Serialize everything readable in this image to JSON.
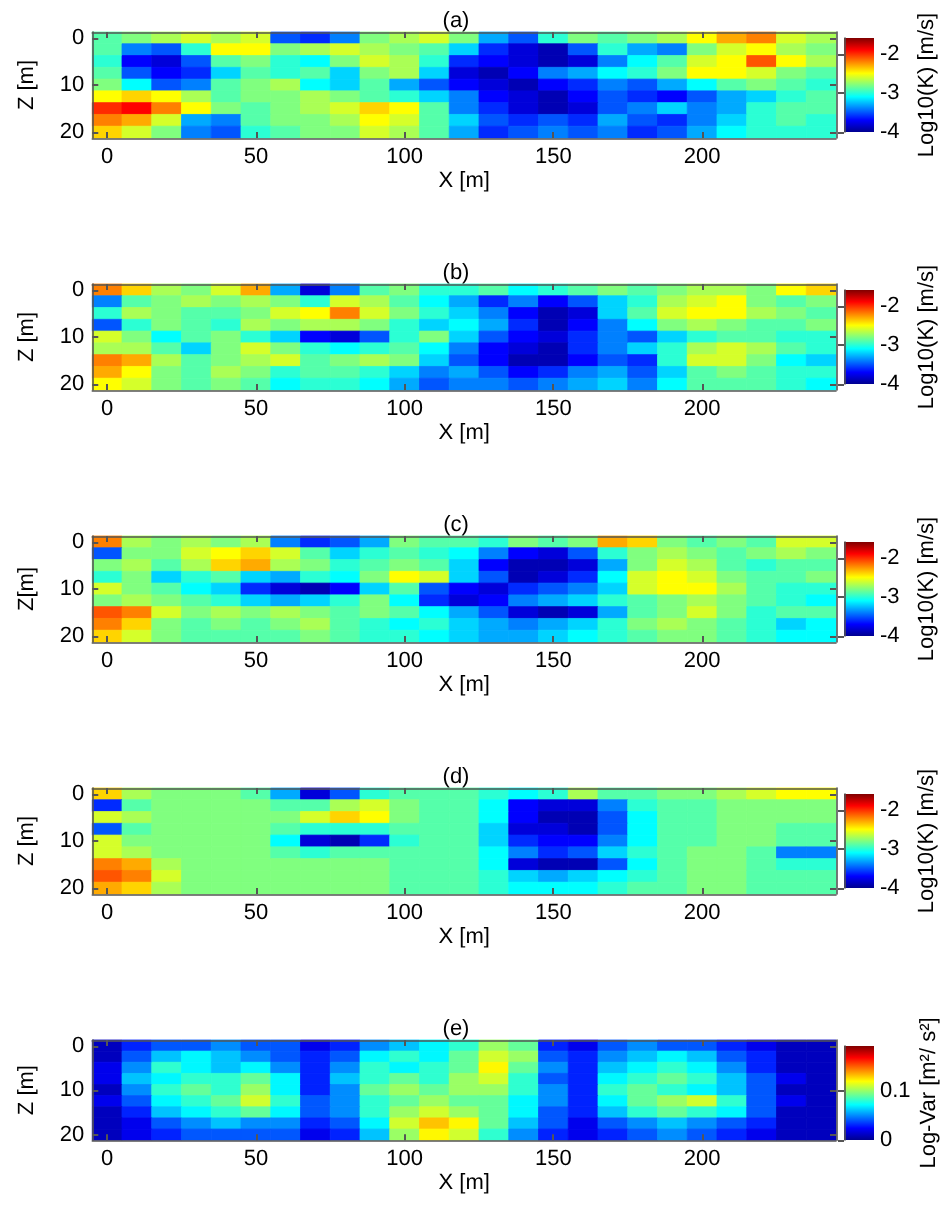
{
  "chart_data": [
    {
      "type": "heatmap",
      "title": "(a)",
      "xlabel": "X [m]",
      "ylabel": "Z [m]",
      "clabel": "Log10(K) [m/s]",
      "categories": [
        "0",
        null,
        null,
        null,
        null,
        "50",
        null,
        null,
        null,
        null,
        "100",
        null,
        null,
        null,
        null,
        "150",
        null,
        null,
        null,
        null,
        "200",
        null,
        null,
        null,
        null
      ],
      "y_categories": [
        "0",
        null,
        null,
        null,
        "10",
        null,
        null,
        null,
        "20"
      ],
      "clim": [
        -4,
        -1.6
      ],
      "cticks": [
        -4,
        -3,
        -2
      ],
      "cells": [
        [
          -2.9,
          -2.8,
          -2.7,
          -2.6,
          -2.7,
          -2.6,
          -3.5,
          -3.6,
          -3.4,
          -2.8,
          -2.7,
          -2.6,
          -2.8,
          -3.3,
          -3.5,
          -3.0,
          -2.8,
          -2.9,
          -2.8,
          -2.7,
          -2.5,
          -2.3,
          -2.2,
          -2.6,
          -2.7
        ],
        [
          -2.9,
          -3.4,
          -3.5,
          -3.0,
          -2.5,
          -2.5,
          -2.8,
          -2.7,
          -2.6,
          -2.7,
          -2.8,
          -2.9,
          -3.2,
          -3.6,
          -3.8,
          -3.9,
          -3.5,
          -3.0,
          -3.3,
          -3.4,
          -2.8,
          -2.6,
          -2.5,
          -2.7,
          -2.8
        ],
        [
          -3.0,
          -3.7,
          -3.8,
          -3.5,
          -2.9,
          -2.8,
          -3.0,
          -3.1,
          -2.8,
          -2.6,
          -2.7,
          -3.0,
          -3.6,
          -3.7,
          -3.8,
          -3.9,
          -3.8,
          -3.4,
          -3.1,
          -2.9,
          -2.6,
          -2.5,
          -2.1,
          -2.5,
          -2.7
        ],
        [
          -2.9,
          -3.5,
          -3.7,
          -3.6,
          -3.2,
          -2.9,
          -3.0,
          -2.9,
          -3.2,
          -2.8,
          -2.7,
          -3.2,
          -3.8,
          -3.9,
          -3.7,
          -3.4,
          -3.3,
          -3.1,
          -3.0,
          -2.8,
          -2.5,
          -2.5,
          -2.6,
          -2.8,
          -2.9
        ],
        [
          -2.8,
          -3.1,
          -3.5,
          -3.4,
          -2.9,
          -2.8,
          -2.7,
          -3.1,
          -3.2,
          -2.9,
          -3.3,
          -3.5,
          -3.7,
          -3.8,
          -3.9,
          -3.7,
          -3.6,
          -3.4,
          -3.5,
          -3.3,
          -3.1,
          -2.9,
          -2.8,
          -2.9,
          -3.0
        ],
        [
          -2.5,
          -2.4,
          -2.5,
          -2.7,
          -2.9,
          -2.8,
          -2.8,
          -2.7,
          -2.8,
          -2.9,
          -3.0,
          -3.2,
          -3.4,
          -3.7,
          -3.8,
          -3.9,
          -3.7,
          -3.5,
          -3.6,
          -3.7,
          -3.5,
          -3.3,
          -3.2,
          -3.0,
          -2.9
        ],
        [
          -2.0,
          -1.9,
          -2.2,
          -2.5,
          -2.8,
          -2.9,
          -2.8,
          -2.7,
          -2.6,
          -2.4,
          -2.5,
          -2.9,
          -3.4,
          -3.6,
          -3.8,
          -3.9,
          -3.8,
          -3.5,
          -3.4,
          -3.2,
          -3.4,
          -3.3,
          -3.0,
          -2.9,
          -2.9
        ],
        [
          -2.2,
          -2.3,
          -2.6,
          -3.3,
          -3.4,
          -2.9,
          -2.8,
          -2.8,
          -2.7,
          -2.5,
          -2.6,
          -2.9,
          -3.2,
          -3.5,
          -3.6,
          -3.5,
          -3.6,
          -3.3,
          -3.5,
          -3.6,
          -3.4,
          -3.2,
          -3.0,
          -2.9,
          -3.0
        ],
        [
          -2.4,
          -2.6,
          -2.8,
          -3.4,
          -3.5,
          -3.0,
          -2.9,
          -2.8,
          -2.8,
          -2.6,
          -2.7,
          -2.9,
          -3.3,
          -3.6,
          -3.5,
          -3.4,
          -3.5,
          -3.4,
          -3.6,
          -3.5,
          -3.3,
          -3.1,
          -3.0,
          -3.0,
          -3.0
        ]
      ]
    },
    {
      "type": "heatmap",
      "title": "(b)",
      "xlabel": "X [m]",
      "ylabel": "Z [m]",
      "clabel": "Log10(K) [m/s]",
      "categories": [
        "0",
        null,
        null,
        null,
        null,
        "50",
        null,
        null,
        null,
        null,
        "100",
        null,
        null,
        null,
        null,
        "150",
        null,
        null,
        null,
        null,
        "200",
        null,
        null,
        null,
        null
      ],
      "y_categories": [
        "0",
        null,
        null,
        null,
        "10",
        null,
        null,
        null,
        "20"
      ],
      "clim": [
        -4,
        -1.6
      ],
      "cticks": [
        -4,
        -3,
        -2
      ],
      "cells": [
        [
          -2.2,
          -2.4,
          -2.7,
          -2.8,
          -2.6,
          -2.3,
          -3.3,
          -3.8,
          -3.4,
          -2.9,
          -2.8,
          -3.0,
          -3.0,
          -2.9,
          -3.1,
          -3.0,
          -2.9,
          -2.8,
          -2.9,
          -2.8,
          -2.7,
          -2.7,
          -2.8,
          -2.5,
          -2.4
        ],
        [
          -3.4,
          -2.9,
          -2.8,
          -2.7,
          -2.8,
          -2.7,
          -2.8,
          -3.0,
          -2.6,
          -2.7,
          -2.9,
          -3.1,
          -3.3,
          -3.6,
          -3.4,
          -3.7,
          -3.5,
          -3.2,
          -3.0,
          -2.7,
          -2.6,
          -2.5,
          -2.8,
          -2.9,
          -2.8
        ],
        [
          -3.0,
          -2.7,
          -2.8,
          -2.9,
          -2.9,
          -2.8,
          -2.6,
          -2.5,
          -2.2,
          -2.6,
          -2.8,
          -3.0,
          -3.2,
          -3.4,
          -3.7,
          -3.9,
          -3.8,
          -3.2,
          -2.9,
          -2.6,
          -2.5,
          -2.5,
          -2.7,
          -2.8,
          -2.9
        ],
        [
          -3.5,
          -3.0,
          -2.8,
          -2.9,
          -3.0,
          -2.7,
          -2.8,
          -2.7,
          -2.7,
          -2.8,
          -3.0,
          -3.2,
          -3.1,
          -3.3,
          -3.6,
          -3.9,
          -3.7,
          -3.4,
          -3.1,
          -2.8,
          -2.7,
          -2.8,
          -2.9,
          -2.9,
          -2.8
        ],
        [
          -2.6,
          -2.8,
          -3.1,
          -2.9,
          -2.8,
          -3.0,
          -3.2,
          -3.7,
          -3.8,
          -3.5,
          -3.0,
          -2.8,
          -3.2,
          -3.5,
          -3.7,
          -3.8,
          -3.6,
          -3.4,
          -3.5,
          -3.2,
          -3.0,
          -2.9,
          -2.9,
          -3.0,
          -3.0
        ],
        [
          -2.7,
          -2.7,
          -2.9,
          -3.2,
          -2.8,
          -2.6,
          -2.8,
          -3.0,
          -3.1,
          -3.0,
          -2.9,
          -3.1,
          -3.4,
          -3.7,
          -3.8,
          -3.9,
          -3.6,
          -3.4,
          -3.2,
          -3.0,
          -2.7,
          -2.6,
          -2.7,
          -2.9,
          -3.0
        ],
        [
          -2.2,
          -2.3,
          -2.7,
          -2.9,
          -2.8,
          -2.7,
          -2.6,
          -2.9,
          -2.8,
          -2.7,
          -2.8,
          -3.2,
          -3.5,
          -3.7,
          -3.9,
          -3.9,
          -3.7,
          -3.5,
          -3.6,
          -3.0,
          -2.6,
          -2.6,
          -2.8,
          -3.1,
          -3.2
        ],
        [
          -2.3,
          -2.5,
          -2.8,
          -2.9,
          -2.7,
          -2.8,
          -3.0,
          -2.9,
          -2.9,
          -3.0,
          -3.2,
          -3.4,
          -3.3,
          -3.5,
          -3.7,
          -3.6,
          -3.4,
          -3.3,
          -3.5,
          -3.2,
          -2.9,
          -2.8,
          -2.9,
          -3.0,
          -3.0
        ],
        [
          -2.5,
          -2.6,
          -2.8,
          -2.9,
          -2.8,
          -2.9,
          -3.1,
          -3.0,
          -3.0,
          -3.1,
          -3.3,
          -3.5,
          -3.4,
          -3.4,
          -3.5,
          -3.4,
          -3.3,
          -3.2,
          -3.4,
          -3.1,
          -2.9,
          -2.9,
          -2.9,
          -3.0,
          -3.1
        ]
      ]
    },
    {
      "type": "heatmap",
      "title": "(c)",
      "xlabel": "X [m]",
      "ylabel": "Z[m]",
      "clabel": "Log10(K) [m/s]",
      "categories": [
        "0",
        null,
        null,
        null,
        null,
        "50",
        null,
        null,
        null,
        null,
        "100",
        null,
        null,
        null,
        null,
        "150",
        null,
        null,
        null,
        null,
        "200",
        null,
        null,
        null,
        null
      ],
      "y_categories": [
        "0",
        null,
        null,
        null,
        "10",
        null,
        null,
        null,
        "20"
      ],
      "clim": [
        -4,
        -1.6
      ],
      "cticks": [
        -4,
        -3,
        -2
      ],
      "cells": [
        [
          -2.2,
          -2.7,
          -2.8,
          -2.7,
          -2.8,
          -2.7,
          -3.4,
          -3.6,
          -3.5,
          -3.3,
          -2.8,
          -2.9,
          -2.9,
          -3.0,
          -2.8,
          -2.9,
          -2.8,
          -2.3,
          -2.4,
          -2.8,
          -2.9,
          -2.8,
          -2.9,
          -2.6,
          -2.6
        ],
        [
          -3.5,
          -2.8,
          -2.8,
          -2.6,
          -2.5,
          -2.4,
          -2.6,
          -2.9,
          -3.2,
          -3.0,
          -2.9,
          -3.0,
          -3.1,
          -3.4,
          -3.7,
          -3.8,
          -3.5,
          -3.0,
          -2.8,
          -2.7,
          -2.8,
          -2.9,
          -2.8,
          -2.7,
          -2.8
        ],
        [
          -2.8,
          -2.7,
          -2.9,
          -2.7,
          -2.4,
          -2.3,
          -2.7,
          -2.8,
          -3.0,
          -2.9,
          -2.8,
          -2.9,
          -3.2,
          -3.7,
          -3.9,
          -3.9,
          -3.8,
          -3.3,
          -2.8,
          -2.6,
          -2.7,
          -2.9,
          -3.0,
          -2.9,
          -2.9
        ],
        [
          -3.0,
          -2.8,
          -3.2,
          -3.0,
          -2.9,
          -3.2,
          -3.3,
          -3.0,
          -3.1,
          -2.8,
          -2.5,
          -2.6,
          -3.2,
          -3.5,
          -3.9,
          -3.8,
          -3.6,
          -3.1,
          -2.6,
          -2.5,
          -2.6,
          -2.8,
          -2.9,
          -2.9,
          -2.8
        ],
        [
          -2.6,
          -2.8,
          -2.9,
          -3.1,
          -3.2,
          -3.6,
          -3.8,
          -3.9,
          -3.7,
          -3.2,
          -2.9,
          -3.5,
          -3.7,
          -3.8,
          -3.6,
          -3.5,
          -3.4,
          -3.2,
          -2.6,
          -2.5,
          -2.5,
          -2.7,
          -2.9,
          -3.0,
          -3.0
        ],
        [
          -2.8,
          -2.7,
          -2.8,
          -2.9,
          -3.0,
          -3.2,
          -3.3,
          -3.2,
          -3.0,
          -2.8,
          -3.1,
          -3.6,
          -3.8,
          -3.7,
          -3.4,
          -3.3,
          -3.2,
          -3.0,
          -2.9,
          -2.8,
          -2.7,
          -2.8,
          -2.9,
          -3.0,
          -3.1
        ],
        [
          -2.1,
          -2.2,
          -2.6,
          -2.8,
          -2.7,
          -2.8,
          -2.7,
          -2.8,
          -2.9,
          -2.8,
          -2.9,
          -3.1,
          -3.3,
          -3.5,
          -3.8,
          -3.9,
          -3.8,
          -3.3,
          -2.9,
          -2.8,
          -2.6,
          -2.8,
          -3.0,
          -2.9,
          -2.9
        ],
        [
          -2.2,
          -2.4,
          -2.8,
          -2.9,
          -2.8,
          -2.9,
          -2.8,
          -2.7,
          -2.9,
          -3.0,
          -3.1,
          -3.0,
          -3.2,
          -3.3,
          -3.4,
          -3.3,
          -3.2,
          -3.0,
          -2.8,
          -2.7,
          -2.8,
          -2.9,
          -3.0,
          -3.2,
          -3.1
        ],
        [
          -2.4,
          -2.6,
          -2.8,
          -2.9,
          -2.9,
          -2.9,
          -2.9,
          -2.8,
          -2.9,
          -3.0,
          -3.0,
          -3.1,
          -3.2,
          -3.3,
          -3.3,
          -3.2,
          -3.1,
          -3.0,
          -2.9,
          -2.8,
          -2.8,
          -2.9,
          -3.0,
          -3.1,
          -3.1
        ]
      ]
    },
    {
      "type": "heatmap",
      "title": "(d)",
      "xlabel": "X [m]",
      "ylabel": "Z [m]",
      "clabel": "Log10(K) [m/s]",
      "categories": [
        "0",
        null,
        null,
        null,
        null,
        "50",
        null,
        null,
        null,
        null,
        "100",
        null,
        null,
        null,
        null,
        "150",
        null,
        null,
        null,
        null,
        "200",
        null,
        null,
        null,
        null
      ],
      "y_categories": [
        "0",
        null,
        null,
        null,
        "10",
        null,
        null,
        null,
        "20"
      ],
      "clim": [
        -4,
        -1.6
      ],
      "cticks": [
        -4,
        -3,
        -2
      ],
      "cells": [
        [
          -2.4,
          -2.7,
          -2.8,
          -2.8,
          -2.8,
          -2.9,
          -3.3,
          -3.8,
          -3.5,
          -3.0,
          -2.9,
          -2.9,
          -2.9,
          -3.0,
          -3.1,
          -3.0,
          -2.7,
          -2.9,
          -2.9,
          -2.8,
          -2.8,
          -2.7,
          -2.6,
          -2.5,
          -2.5
        ],
        [
          -3.6,
          -2.9,
          -2.8,
          -2.8,
          -2.8,
          -2.8,
          -2.9,
          -2.9,
          -2.7,
          -2.6,
          -2.8,
          -2.9,
          -2.9,
          -3.1,
          -3.7,
          -3.8,
          -3.8,
          -3.4,
          -3.0,
          -2.9,
          -2.9,
          -2.8,
          -2.8,
          -2.8,
          -2.8
        ],
        [
          -2.6,
          -2.7,
          -2.8,
          -2.8,
          -2.8,
          -2.8,
          -2.8,
          -2.6,
          -2.4,
          -2.5,
          -2.8,
          -2.9,
          -2.9,
          -3.1,
          -3.7,
          -3.9,
          -3.9,
          -3.5,
          -3.1,
          -2.9,
          -2.9,
          -2.8,
          -2.8,
          -2.8,
          -2.8
        ],
        [
          -3.5,
          -2.9,
          -2.8,
          -2.8,
          -2.8,
          -2.8,
          -2.9,
          -3.0,
          -3.0,
          -3.0,
          -2.9,
          -2.9,
          -2.9,
          -3.2,
          -3.8,
          -3.8,
          -3.9,
          -3.5,
          -3.1,
          -2.9,
          -2.9,
          -2.8,
          -2.8,
          -2.9,
          -2.9
        ],
        [
          -2.6,
          -2.8,
          -2.8,
          -2.8,
          -2.8,
          -2.8,
          -3.1,
          -3.8,
          -3.9,
          -3.6,
          -3.0,
          -2.9,
          -2.9,
          -3.2,
          -3.6,
          -3.7,
          -3.7,
          -3.4,
          -3.1,
          -2.9,
          -2.9,
          -2.8,
          -2.8,
          -2.9,
          -2.9
        ],
        [
          -2.6,
          -2.7,
          -2.8,
          -2.8,
          -2.8,
          -2.8,
          -2.9,
          -3.0,
          -2.9,
          -2.9,
          -2.9,
          -2.9,
          -2.9,
          -3.1,
          -3.4,
          -3.6,
          -3.5,
          -3.2,
          -3.0,
          -2.9,
          -2.8,
          -2.8,
          -2.9,
          -3.4,
          -3.4
        ],
        [
          -2.2,
          -2.3,
          -2.7,
          -2.8,
          -2.8,
          -2.8,
          -2.8,
          -2.8,
          -2.8,
          -2.8,
          -2.9,
          -2.9,
          -2.9,
          -3.1,
          -3.8,
          -3.9,
          -3.9,
          -3.5,
          -3.1,
          -2.9,
          -2.8,
          -2.8,
          -2.9,
          -3.0,
          -3.0
        ],
        [
          -2.1,
          -2.2,
          -2.6,
          -2.8,
          -2.8,
          -2.8,
          -2.8,
          -2.8,
          -2.8,
          -2.8,
          -2.9,
          -2.9,
          -2.9,
          -3.0,
          -3.2,
          -3.3,
          -3.2,
          -3.1,
          -3.0,
          -2.9,
          -2.8,
          -2.8,
          -2.9,
          -2.9,
          -2.9
        ],
        [
          -2.3,
          -2.4,
          -2.7,
          -2.8,
          -2.8,
          -2.8,
          -2.8,
          -2.8,
          -2.8,
          -2.8,
          -2.9,
          -2.9,
          -2.9,
          -3.0,
          -3.1,
          -3.1,
          -3.1,
          -3.0,
          -2.9,
          -2.9,
          -2.8,
          -2.8,
          -2.9,
          -2.9,
          -2.9
        ]
      ]
    },
    {
      "type": "heatmap",
      "title": "(e)",
      "xlabel": "X [m]",
      "ylabel": "Z [m]",
      "clabel": "Log-Var [m²/ s²]",
      "categories": [
        "0",
        null,
        null,
        null,
        null,
        "50",
        null,
        null,
        null,
        null,
        "100",
        null,
        null,
        null,
        null,
        "150",
        null,
        null,
        null,
        null,
        "200",
        null,
        null,
        null,
        null
      ],
      "y_categories": [
        "0",
        null,
        null,
        null,
        "10",
        null,
        null,
        null,
        "20"
      ],
      "clim": [
        0,
        0.19
      ],
      "cticks": [
        0,
        0.1
      ],
      "cells": [
        [
          0.01,
          0.03,
          0.04,
          0.04,
          0.05,
          0.04,
          0.04,
          0.02,
          0.03,
          0.05,
          0.06,
          0.07,
          0.08,
          0.1,
          0.09,
          0.03,
          0.02,
          0.04,
          0.05,
          0.04,
          0.04,
          0.03,
          0.02,
          0.01,
          0.01
        ],
        [
          0.01,
          0.04,
          0.06,
          0.07,
          0.06,
          0.05,
          0.04,
          0.03,
          0.04,
          0.07,
          0.08,
          0.07,
          0.09,
          0.11,
          0.1,
          0.04,
          0.03,
          0.05,
          0.06,
          0.07,
          0.06,
          0.04,
          0.03,
          0.01,
          0.01
        ],
        [
          0.02,
          0.05,
          0.08,
          0.07,
          0.06,
          0.07,
          0.05,
          0.03,
          0.05,
          0.08,
          0.07,
          0.08,
          0.09,
          0.12,
          0.09,
          0.05,
          0.03,
          0.06,
          0.07,
          0.08,
          0.07,
          0.05,
          0.03,
          0.01,
          0.01
        ],
        [
          0.02,
          0.06,
          0.07,
          0.08,
          0.08,
          0.09,
          0.07,
          0.03,
          0.06,
          0.08,
          0.09,
          0.08,
          0.1,
          0.11,
          0.08,
          0.04,
          0.03,
          0.07,
          0.08,
          0.09,
          0.08,
          0.06,
          0.04,
          0.02,
          0.01
        ],
        [
          0.01,
          0.05,
          0.08,
          0.09,
          0.08,
          0.1,
          0.07,
          0.03,
          0.05,
          0.09,
          0.1,
          0.09,
          0.1,
          0.1,
          0.08,
          0.05,
          0.03,
          0.08,
          0.09,
          0.08,
          0.07,
          0.06,
          0.04,
          0.01,
          0.01
        ],
        [
          0.02,
          0.04,
          0.07,
          0.08,
          0.09,
          0.11,
          0.08,
          0.04,
          0.05,
          0.08,
          0.09,
          0.1,
          0.09,
          0.09,
          0.07,
          0.05,
          0.03,
          0.07,
          0.09,
          0.1,
          0.11,
          0.08,
          0.04,
          0.02,
          0.01
        ],
        [
          0.01,
          0.03,
          0.06,
          0.07,
          0.08,
          0.09,
          0.07,
          0.04,
          0.05,
          0.08,
          0.1,
          0.11,
          0.1,
          0.09,
          0.07,
          0.04,
          0.03,
          0.06,
          0.08,
          0.09,
          0.08,
          0.07,
          0.04,
          0.01,
          0.01
        ],
        [
          0.01,
          0.02,
          0.04,
          0.05,
          0.06,
          0.05,
          0.05,
          0.03,
          0.04,
          0.07,
          0.11,
          0.13,
          0.12,
          0.09,
          0.06,
          0.04,
          0.02,
          0.04,
          0.05,
          0.06,
          0.05,
          0.04,
          0.03,
          0.01,
          0.01
        ],
        [
          0.01,
          0.02,
          0.03,
          0.04,
          0.04,
          0.04,
          0.04,
          0.02,
          0.03,
          0.06,
          0.1,
          0.12,
          0.11,
          0.08,
          0.05,
          0.03,
          0.02,
          0.03,
          0.04,
          0.05,
          0.04,
          0.03,
          0.02,
          0.01,
          0.01
        ]
      ]
    }
  ]
}
